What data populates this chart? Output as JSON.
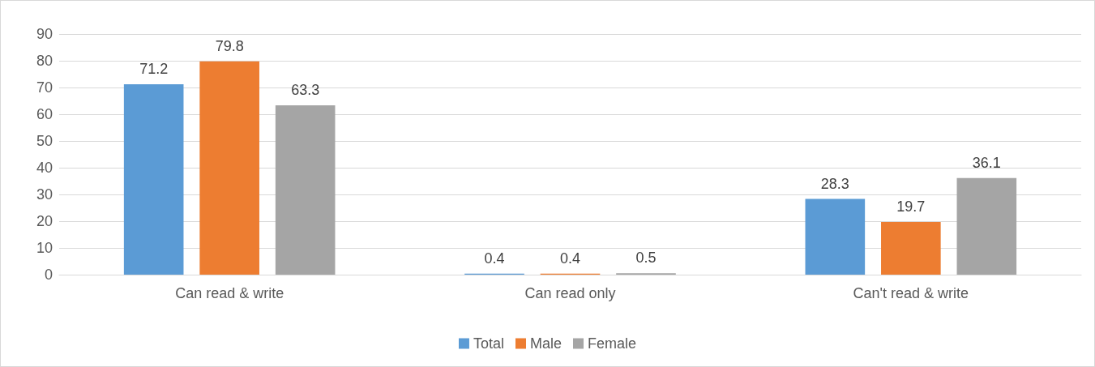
{
  "chart_data": {
    "type": "bar",
    "categories": [
      "Can read & write",
      "Can read only",
      "Can't read & write"
    ],
    "series": [
      {
        "name": "Total",
        "color": "#5b9bd5",
        "values": [
          71.2,
          0.4,
          28.3
        ]
      },
      {
        "name": "Male",
        "color": "#ed7d31",
        "values": [
          79.8,
          0.4,
          19.7
        ]
      },
      {
        "name": "Female",
        "color": "#a5a5a5",
        "values": [
          63.3,
          0.5,
          36.1
        ]
      }
    ],
    "ylim": [
      0,
      90
    ],
    "yticks": [
      0,
      10,
      20,
      30,
      40,
      50,
      60,
      70,
      80,
      90
    ],
    "grid": "y",
    "legend": "bottom",
    "data_labels": true
  }
}
